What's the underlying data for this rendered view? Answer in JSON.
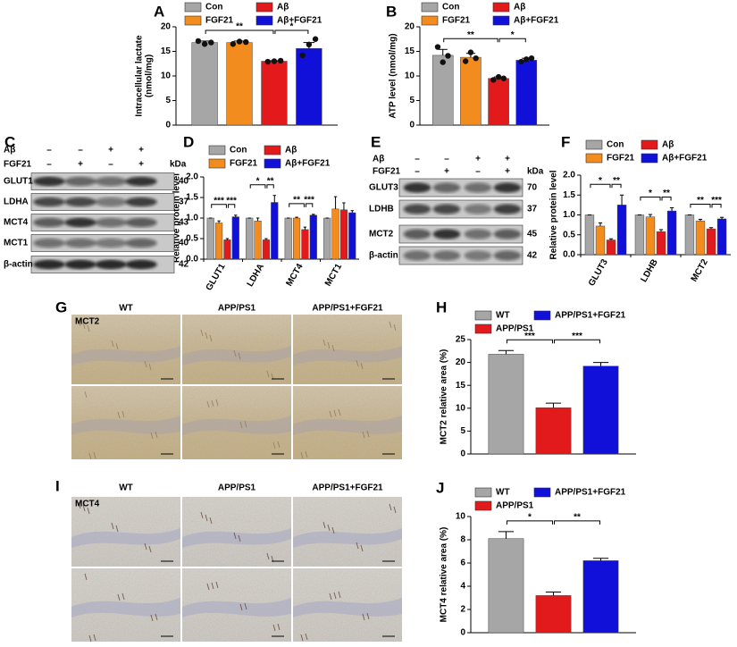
{
  "chart_data": [
    {
      "type": "bar",
      "panel": "A",
      "ylabel": [
        "Intracellular lactate",
        "(nmol/mg)"
      ],
      "ylim": [
        0,
        20
      ],
      "yticks": [
        0,
        5,
        10,
        15,
        20
      ],
      "series": [
        {
          "name": "Con",
          "color": "#a6a6a6",
          "values": [
            16.8
          ],
          "errors": [
            0.3
          ],
          "points": [
            [
              17.1,
              16.5,
              16.8
            ]
          ]
        },
        {
          "name": "FGF21",
          "color": "#f28c1e",
          "values": [
            16.8
          ],
          "errors": [
            0.3
          ],
          "points": [
            [
              16.5,
              17.0,
              16.9
            ]
          ]
        },
        {
          "name": "Aβ",
          "color": "#e31a1c",
          "values": [
            13.0
          ],
          "errors": [
            0.1
          ],
          "points": [
            [
              12.9,
              13.0,
              13.1
            ]
          ]
        },
        {
          "name": "Aβ+FGF21",
          "color": "#1010d8",
          "values": [
            15.6
          ],
          "errors": [
            1.2
          ],
          "points": [
            [
              14.2,
              16.4,
              17.5
            ]
          ]
        }
      ],
      "significance": [
        {
          "label": "**",
          "between": [
            0,
            2
          ]
        },
        {
          "label": "*",
          "between": [
            2,
            3
          ]
        }
      ]
    },
    {
      "type": "bar",
      "panel": "B",
      "ylabel": [
        "ATP level (nmol/mg)"
      ],
      "ylim": [
        0,
        20
      ],
      "yticks": [
        0,
        5,
        10,
        15,
        20
      ],
      "series": [
        {
          "name": "Con",
          "color": "#a6a6a6",
          "values": [
            14.2
          ],
          "errors": [
            1.2
          ],
          "points": [
            [
              15.9,
              12.8,
              14.1
            ]
          ]
        },
        {
          "name": "FGF21",
          "color": "#f28c1e",
          "values": [
            13.8
          ],
          "errors": [
            0.8
          ],
          "points": [
            [
              13.0,
              14.8,
              13.6
            ]
          ]
        },
        {
          "name": "Aβ",
          "color": "#e31a1c",
          "values": [
            9.5
          ],
          "errors": [
            0.3
          ],
          "points": [
            [
              9.2,
              9.8,
              9.5
            ]
          ]
        },
        {
          "name": "Aβ+FGF21",
          "color": "#1010d8",
          "values": [
            13.2
          ],
          "errors": [
            0.4
          ],
          "points": [
            [
              12.9,
              13.4,
              13.6
            ]
          ]
        }
      ],
      "significance": [
        {
          "label": "**",
          "between": [
            0,
            2
          ]
        },
        {
          "label": "*",
          "between": [
            2,
            3
          ]
        }
      ]
    },
    {
      "type": "bar",
      "panel": "D",
      "ylabel": [
        "Relative protein level"
      ],
      "categories": [
        "GLUT1",
        "LDHA",
        "MCT4",
        "MCT1"
      ],
      "ylim": [
        0,
        2
      ],
      "yticks": [
        {
          "value": 0,
          "label": "0.0"
        },
        {
          "value": 0.5,
          "label": "0.5"
        },
        {
          "value": 1,
          "label": "1.0"
        },
        {
          "value": 1.5,
          "label": "1.5"
        },
        {
          "value": 2,
          "label": "2.0"
        }
      ],
      "series": [
        {
          "name": "Con",
          "color": "#a6a6a6",
          "values": [
            1.0,
            1.0,
            1.0,
            1.0
          ],
          "errors": [
            0,
            0,
            0,
            0
          ]
        },
        {
          "name": "FGF21",
          "color": "#f28c1e",
          "values": [
            0.88,
            0.93,
            1.0,
            1.22
          ],
          "errors": [
            0.05,
            0.07,
            0.02,
            0.3
          ]
        },
        {
          "name": "Aβ",
          "color": "#e31a1c",
          "values": [
            0.47,
            0.47,
            0.72,
            1.2
          ],
          "errors": [
            0.03,
            0.03,
            0.06,
            0.17
          ]
        },
        {
          "name": "Aβ+FGF21",
          "color": "#1010d8",
          "values": [
            1.03,
            1.38,
            1.07,
            1.13
          ],
          "errors": [
            0.04,
            0.17,
            0.02,
            0.05
          ]
        }
      ],
      "significance": [
        {
          "category": 0,
          "label": "***",
          "between": [
            0,
            2
          ]
        },
        {
          "category": 0,
          "label": "***",
          "between": [
            2,
            3
          ]
        },
        {
          "category": 1,
          "label": "*",
          "between": [
            0,
            2
          ]
        },
        {
          "category": 1,
          "label": "**",
          "between": [
            2,
            3
          ]
        },
        {
          "category": 2,
          "label": "**",
          "between": [
            0,
            2
          ]
        },
        {
          "category": 2,
          "label": "***",
          "between": [
            2,
            3
          ]
        }
      ]
    },
    {
      "type": "bar",
      "panel": "F",
      "ylabel": [
        "Relative protein level"
      ],
      "categories": [
        "GLUT3",
        "LDHB",
        "MCT2"
      ],
      "ylim": [
        0,
        2
      ],
      "yticks": [
        {
          "value": 0,
          "label": "0.0"
        },
        {
          "value": 0.5,
          "label": "0.5"
        },
        {
          "value": 1,
          "label": "1.0"
        },
        {
          "value": 1.5,
          "label": "1.5"
        },
        {
          "value": 2,
          "label": "2.0"
        }
      ],
      "series": [
        {
          "name": "Con",
          "color": "#a6a6a6",
          "values": [
            1.0,
            1.0,
            1.0
          ],
          "errors": [
            0,
            0,
            0
          ]
        },
        {
          "name": "FGF21",
          "color": "#f28c1e",
          "values": [
            0.72,
            0.95,
            0.85
          ],
          "errors": [
            0.08,
            0.06,
            0.04
          ]
        },
        {
          "name": "Aβ",
          "color": "#e31a1c",
          "values": [
            0.37,
            0.58,
            0.65
          ],
          "errors": [
            0.03,
            0.05,
            0.03
          ]
        },
        {
          "name": "Aβ+FGF21",
          "color": "#1010d8",
          "values": [
            1.25,
            1.1,
            0.9
          ],
          "errors": [
            0.25,
            0.08,
            0.04
          ]
        }
      ],
      "significance": [
        {
          "category": 0,
          "label": "*",
          "between": [
            0,
            2
          ]
        },
        {
          "category": 0,
          "label": "**",
          "between": [
            2,
            3
          ]
        },
        {
          "category": 1,
          "label": "*",
          "between": [
            0,
            2
          ]
        },
        {
          "category": 1,
          "label": "**",
          "between": [
            2,
            3
          ]
        },
        {
          "category": 2,
          "label": "**",
          "between": [
            0,
            2
          ]
        },
        {
          "category": 2,
          "label": "***",
          "between": [
            2,
            3
          ]
        }
      ]
    },
    {
      "type": "bar",
      "panel": "H",
      "ylabel": [
        "MCT2 relative area (%)"
      ],
      "ylim": [
        0,
        25
      ],
      "yticks": [
        0,
        5,
        10,
        15,
        20,
        25
      ],
      "series": [
        {
          "name": "WT",
          "color": "#a6a6a6",
          "values": [
            21.8
          ],
          "errors": [
            0.8
          ]
        },
        {
          "name": "APP/PS1",
          "color": "#e31a1c",
          "values": [
            10.1
          ],
          "errors": [
            1.0
          ]
        },
        {
          "name": "APP/PS1+FGF21",
          "color": "#1010d8",
          "values": [
            19.2
          ],
          "errors": [
            0.8
          ]
        }
      ],
      "significance": [
        {
          "label": "***",
          "between": [
            0,
            1
          ]
        },
        {
          "label": "***",
          "between": [
            1,
            2
          ]
        }
      ]
    },
    {
      "type": "bar",
      "panel": "J",
      "ylabel": [
        "MCT4 relative area (%)"
      ],
      "ylim": [
        0,
        10
      ],
      "yticks": [
        0,
        2,
        4,
        6,
        8,
        10
      ],
      "series": [
        {
          "name": "WT",
          "color": "#a6a6a6",
          "values": [
            8.1
          ],
          "errors": [
            0.6
          ]
        },
        {
          "name": "APP/PS1",
          "color": "#e31a1c",
          "values": [
            3.2
          ],
          "errors": [
            0.3
          ]
        },
        {
          "name": "APP/PS1+FGF21",
          "color": "#1010d8",
          "values": [
            6.2
          ],
          "errors": [
            0.2
          ]
        }
      ],
      "significance": [
        {
          "label": "*",
          "between": [
            0,
            1
          ]
        },
        {
          "label": "**",
          "between": [
            1,
            2
          ]
        }
      ]
    }
  ],
  "blots": [
    {
      "panel": "C",
      "unit": "kDa",
      "conditions": [
        {
          "name": "Aβ",
          "marks": [
            "–",
            "–",
            "+",
            "+"
          ]
        },
        {
          "name": "FGF21",
          "marks": [
            "–",
            "+",
            "–",
            "+"
          ]
        }
      ],
      "rows": [
        {
          "name": "GLUT1",
          "kda": 40
        },
        {
          "name": "LDHA",
          "kda": 37
        },
        {
          "name": "MCT4",
          "kda": 43
        },
        {
          "name": "MCT1",
          "kda": 40
        },
        {
          "name": "β-actin",
          "kda": 42
        }
      ]
    },
    {
      "panel": "E",
      "unit": "kDa",
      "conditions": [
        {
          "name": "Aβ",
          "marks": [
            "–",
            "–",
            "+",
            "+"
          ]
        },
        {
          "name": "FGF21",
          "marks": [
            "–",
            "+",
            "–",
            "+"
          ]
        }
      ],
      "rows": [
        {
          "name": "GLUT3",
          "kda": 70
        },
        {
          "name": "LDHB",
          "kda": 37
        },
        {
          "name": "MCT2",
          "kda": 45
        },
        {
          "name": "β-actin",
          "kda": 42
        }
      ]
    }
  ],
  "micrographs": [
    {
      "panel": "G",
      "stain": "MCT2",
      "columns": [
        "WT",
        "APP/PS1",
        "APP/PS1+FGF21"
      ]
    },
    {
      "panel": "I",
      "stain": "MCT4",
      "columns": [
        "WT",
        "APP/PS1",
        "APP/PS1+FGF21"
      ]
    }
  ]
}
